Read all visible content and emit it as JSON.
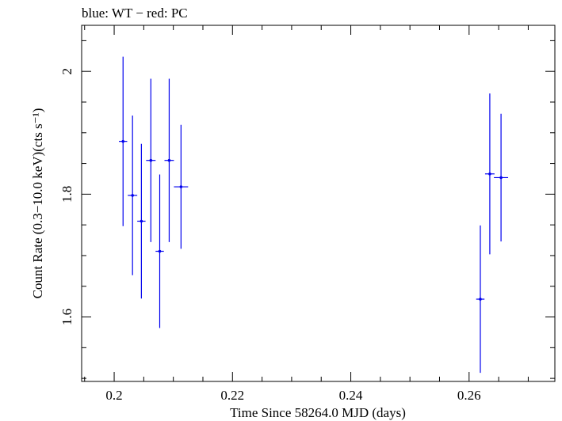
{
  "chart_data": {
    "type": "scatter",
    "title": "blue: WT − red: PC",
    "xlabel": "Time Since 58264.0 MJD (days)",
    "ylabel": "Count Rate (0.3−10.0 keV)(cts s⁻¹)",
    "xlim": [
      0.1945,
      0.2745
    ],
    "ylim": [
      1.495,
      2.075
    ],
    "x_ticks_major": [
      0.2,
      0.22,
      0.24,
      0.26
    ],
    "x_tick_labels": [
      "0.2",
      "0.22",
      "0.24",
      "0.26"
    ],
    "x_ticks_minor": [
      0.195,
      0.205,
      0.21,
      0.215,
      0.225,
      0.23,
      0.235,
      0.245,
      0.25,
      0.255,
      0.265,
      0.27
    ],
    "y_ticks_major": [
      1.6,
      1.8,
      2.0
    ],
    "y_tick_labels": [
      "1.6",
      "1.8",
      "2"
    ],
    "y_ticks_minor": [
      1.5,
      1.55,
      1.65,
      1.7,
      1.75,
      1.85,
      1.9,
      1.95,
      2.05
    ],
    "grid": false,
    "series": [
      {
        "name": "WT",
        "color": "#0000ee",
        "points": [
          {
            "x": 0.2015,
            "xerr": 0.0007,
            "y": 1.886,
            "yerr": 0.138
          },
          {
            "x": 0.2031,
            "xerr": 0.0008,
            "y": 1.798,
            "yerr": 0.13
          },
          {
            "x": 0.2046,
            "xerr": 0.0007,
            "y": 1.756,
            "yerr": 0.126
          },
          {
            "x": 0.2062,
            "xerr": 0.0008,
            "y": 1.855,
            "yerr": 0.133
          },
          {
            "x": 0.2077,
            "xerr": 0.0007,
            "y": 1.707,
            "yerr": 0.125
          },
          {
            "x": 0.2093,
            "xerr": 0.0008,
            "y": 1.855,
            "yerr": 0.133
          },
          {
            "x": 0.2113,
            "xerr": 0.0012,
            "y": 1.812,
            "yerr": 0.101
          },
          {
            "x": 0.2619,
            "xerr": 0.0007,
            "y": 1.629,
            "yerr": 0.12
          },
          {
            "x": 0.2635,
            "xerr": 0.0008,
            "y": 1.833,
            "yerr": 0.131
          },
          {
            "x": 0.2654,
            "xerr": 0.0012,
            "y": 1.827,
            "yerr": 0.104
          }
        ]
      }
    ]
  }
}
